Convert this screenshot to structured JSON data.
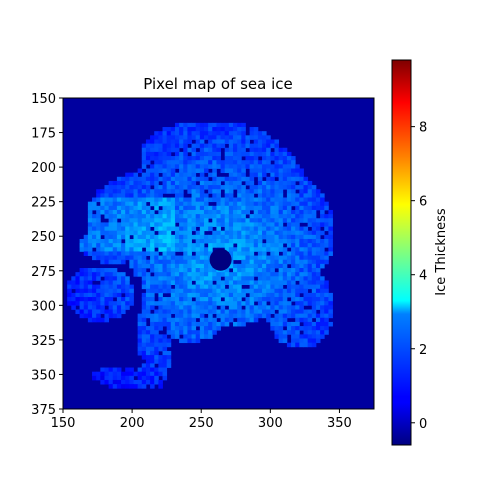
{
  "chart_data": {
    "type": "heatmap",
    "title": "Pixel map of sea ice",
    "xlabel": "",
    "ylabel": "",
    "xlim": [
      150,
      375
    ],
    "ylim": [
      375,
      150
    ],
    "x_ticks": [
      150,
      200,
      250,
      300,
      350
    ],
    "y_ticks": [
      150,
      175,
      200,
      225,
      250,
      275,
      300,
      325,
      350,
      375
    ],
    "colorbar": {
      "label": "Ice Thickness",
      "colormap": "jet",
      "range": [
        -0.6,
        9.8
      ],
      "ticks": [
        0,
        2,
        4,
        6,
        8
      ]
    },
    "background_value": -0.6,
    "pole_hole": {
      "x": 264,
      "y": 267,
      "value": -0.6
    },
    "colors": {
      "jet_low": "#00007f",
      "jet_high": "#7f0000"
    }
  }
}
